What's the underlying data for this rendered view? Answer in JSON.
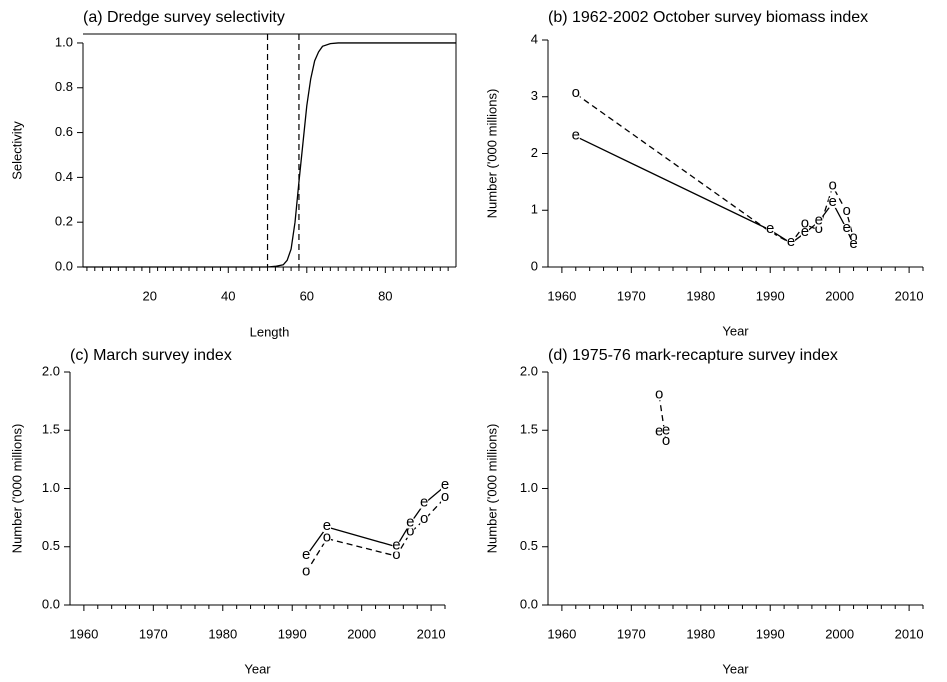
{
  "chart_data": [
    {
      "type": "line",
      "title": "(a) Dredge survey selectivity",
      "xlabel": "Length",
      "ylabel": "Selectivity",
      "x": [
        3,
        50,
        52,
        54,
        55,
        56,
        57,
        58,
        59,
        60,
        61,
        62,
        63,
        64,
        66,
        68,
        98
      ],
      "series": [
        {
          "values": [
            0,
            0,
            0.003,
            0.01,
            0.03,
            0.08,
            0.2,
            0.38,
            0.55,
            0.72,
            0.84,
            0.92,
            0.96,
            0.985,
            0.997,
            1.0,
            1.0
          ],
          "line_style": "solid",
          "color": "#000000"
        }
      ],
      "vlines": [
        50,
        58
      ],
      "vline_style": "dashed",
      "box": true,
      "xlim": [
        3,
        98
      ],
      "ylim": [
        0,
        1.04
      ],
      "xticks": [
        20,
        40,
        60,
        80
      ],
      "xminor": [
        4,
        6,
        8,
        10,
        12,
        14,
        16,
        18,
        22,
        24,
        26,
        28,
        30,
        32,
        34,
        36,
        38,
        42,
        44,
        46,
        48,
        50,
        52,
        54,
        56,
        58,
        62,
        64,
        66,
        68,
        70,
        72,
        74,
        76,
        78,
        82,
        84,
        86,
        88,
        90,
        92,
        94,
        96
      ],
      "yticks": [
        {
          "value": 0,
          "label": "0.0"
        },
        {
          "value": 0.2,
          "label": "0.2"
        },
        {
          "value": 0.4,
          "label": "0.4"
        },
        {
          "value": 0.6,
          "label": "0.6"
        },
        {
          "value": 0.8,
          "label": "0.8"
        },
        {
          "value": 1,
          "label": "1.0"
        }
      ]
    },
    {
      "type": "line",
      "title": "(b) 1962-2002 October survey biomass index",
      "xlabel": "Year",
      "ylabel": "Number ('000 millions)",
      "x": [
        1962,
        1990,
        1993,
        1995,
        1997,
        1999,
        2001,
        2002
      ],
      "series": [
        {
          "marker": "o",
          "line_style": "dashed",
          "color": "#000000",
          "values": [
            3.05,
            0.62,
            0.42,
            0.75,
            0.65,
            1.42,
            0.97,
            0.5
          ]
        },
        {
          "marker": "e",
          "line_style": "solid",
          "color": "#000000",
          "values": [
            2.3,
            0.65,
            0.42,
            0.6,
            0.8,
            1.13,
            0.67,
            0.39
          ]
        }
      ],
      "xlim": [
        1958,
        2012
      ],
      "ylim": [
        0,
        4
      ],
      "xticks": [
        1960,
        1970,
        1980,
        1990,
        2000,
        2010
      ],
      "xminor": [
        1962,
        1964,
        1966,
        1968,
        1972,
        1974,
        1976,
        1978,
        1982,
        1984,
        1986,
        1988,
        1992,
        1994,
        1996,
        1998,
        2002,
        2004,
        2006,
        2008,
        2012
      ],
      "yticks": [
        0,
        1,
        2,
        3,
        4
      ]
    },
    {
      "type": "line",
      "title": "(c) March survey index",
      "xlabel": "Year",
      "ylabel": "Number ('000 millions)",
      "x": [
        1992,
        1995,
        2005,
        2007,
        2009,
        2012
      ],
      "series": [
        {
          "marker": "o",
          "line_style": "dashed",
          "color": "#000000",
          "values": [
            0.28,
            0.57,
            0.42,
            0.62,
            0.73,
            0.92
          ]
        },
        {
          "marker": "e",
          "line_style": "solid",
          "color": "#000000",
          "values": [
            0.42,
            0.67,
            0.5,
            0.7,
            0.87,
            1.02
          ]
        }
      ],
      "xlim": [
        1958,
        2012
      ],
      "ylim": [
        0,
        2
      ],
      "xticks": [
        1960,
        1970,
        1980,
        1990,
        2000,
        2010
      ],
      "xminor": [
        1962,
        1964,
        1966,
        1968,
        1972,
        1974,
        1976,
        1978,
        1982,
        1984,
        1986,
        1988,
        1992,
        1994,
        1996,
        1998,
        2002,
        2004,
        2006,
        2008,
        2012
      ],
      "yticks": [
        {
          "value": 0,
          "label": "0.0"
        },
        {
          "value": 0.5,
          "label": "0.5"
        },
        {
          "value": 1,
          "label": "1.0"
        },
        {
          "value": 1.5,
          "label": "1.5"
        },
        {
          "value": 2,
          "label": "2.0"
        }
      ]
    },
    {
      "type": "line",
      "title": "(d) 1975-76 mark-recapture survey index",
      "xlabel": "Year",
      "ylabel": "Number ('000 millions)",
      "x": [
        1974,
        1975
      ],
      "series": [
        {
          "marker": "o",
          "line_style": "dashed",
          "color": "#000000",
          "values": [
            1.8,
            1.4
          ]
        },
        {
          "marker": "e",
          "line_style": "solid",
          "color": "#000000",
          "values": [
            1.48,
            1.49
          ]
        }
      ],
      "xlim": [
        1958,
        2012
      ],
      "ylim": [
        0,
        2
      ],
      "xticks": [
        1960,
        1970,
        1980,
        1990,
        2000,
        2010
      ],
      "xminor": [
        1962,
        1964,
        1966,
        1968,
        1972,
        1974,
        1976,
        1978,
        1982,
        1984,
        1986,
        1988,
        1992,
        1994,
        1996,
        1998,
        2002,
        2004,
        2006,
        2008,
        2012
      ],
      "yticks": [
        {
          "value": 0,
          "label": "0.0"
        },
        {
          "value": 0.5,
          "label": "0.5"
        },
        {
          "value": 1,
          "label": "1.0"
        },
        {
          "value": 1.5,
          "label": "1.5"
        },
        {
          "value": 2,
          "label": "2.0"
        }
      ]
    }
  ]
}
